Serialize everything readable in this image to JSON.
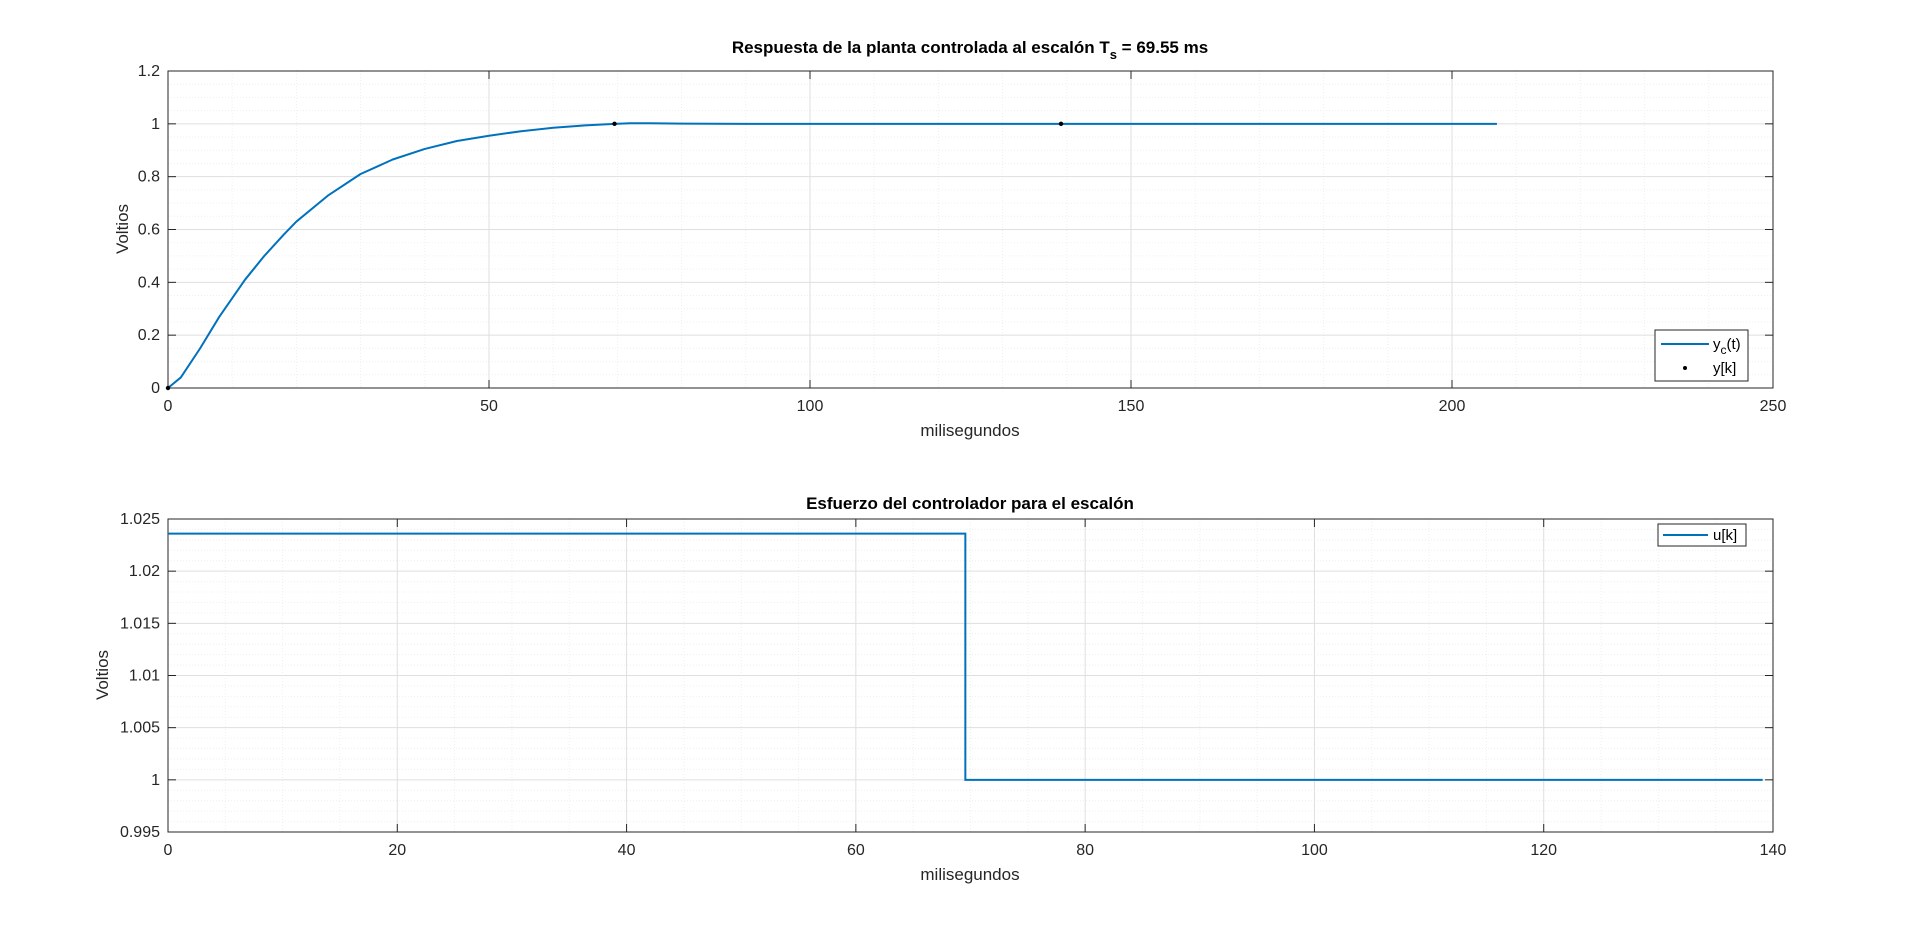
{
  "colors": {
    "series": "#0072BD",
    "marker": "#000000",
    "axis": "#262626",
    "grid": "#dfdfdf",
    "minor_grid": "#efefef"
  },
  "chart_data": [
    {
      "type": "line",
      "title": {
        "main": "Respuesta de la planta controlada al escalón T",
        "sub": "s",
        "tail": " = 69.55 ms"
      },
      "xlabel": "milisegundos",
      "ylabel": "Voltios",
      "xlim": [
        0,
        250
      ],
      "ylim": [
        0,
        1.2
      ],
      "xticks": [
        "0",
        "50",
        "100",
        "150",
        "200",
        "250"
      ],
      "yticks": [
        "0",
        "0.2",
        "0.4",
        "0.6",
        "0.8",
        "1",
        "1.2"
      ],
      "grid": true,
      "minor_grid": true,
      "legend_position": "bottom-right",
      "series": [
        {
          "name": {
            "main": "y",
            "sub": "c",
            "tail": "(t)"
          },
          "style": "line",
          "x": [
            0,
            2,
            5,
            8,
            10,
            12,
            15,
            18,
            20,
            25,
            30,
            35,
            40,
            45,
            50,
            55,
            60,
            65,
            69.55,
            72,
            75,
            80,
            90,
            100,
            150,
            207
          ],
          "y": [
            0,
            0.04,
            0.15,
            0.27,
            0.34,
            0.41,
            0.5,
            0.58,
            0.63,
            0.73,
            0.81,
            0.865,
            0.905,
            0.935,
            0.955,
            0.972,
            0.985,
            0.994,
            1.0,
            1.002,
            1.002,
            1.001,
            1.0,
            1.0,
            1.0,
            1.0
          ]
        },
        {
          "name": "y[k]",
          "style": "markers",
          "x": [
            0,
            69.55,
            139.1
          ],
          "y": [
            0,
            1.0,
            1.0
          ]
        }
      ]
    },
    {
      "type": "line",
      "title": "Esfuerzo del controlador para el escalón",
      "xlabel": "milisegundos",
      "ylabel": "Voltios",
      "xlim": [
        0,
        140
      ],
      "ylim": [
        0.995,
        1.025
      ],
      "xticks": [
        "0",
        "20",
        "40",
        "60",
        "80",
        "100",
        "120",
        "140"
      ],
      "yticks": [
        "0.995",
        "1",
        "1.005",
        "1.01",
        "1.015",
        "1.02",
        "1.025"
      ],
      "grid": true,
      "minor_grid": true,
      "legend_position": "top-right",
      "series": [
        {
          "name": "u[k]",
          "style": "stairs",
          "x": [
            0,
            69.55,
            139.1
          ],
          "y": [
            1.0236,
            1.0,
            1.0
          ]
        }
      ]
    }
  ]
}
